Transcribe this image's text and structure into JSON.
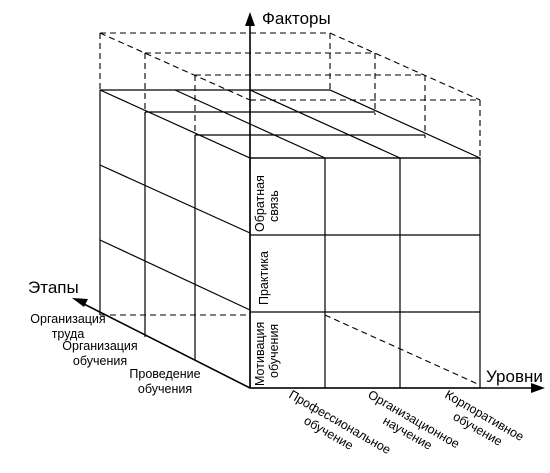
{
  "axes": {
    "factors": "Факторы",
    "stages": "Этапы",
    "levels": "Уровни"
  },
  "factor_items": [
    {
      "line1": "Мотивация",
      "line2": "обучения"
    },
    {
      "line1": "Практика",
      "line2": ""
    },
    {
      "line1": "Обратная",
      "line2": "связь"
    }
  ],
  "stage_items": [
    {
      "line1": "Организация",
      "line2": "труда"
    },
    {
      "line1": "Организация",
      "line2": "обучения"
    },
    {
      "line1": "Проведение",
      "line2": "обучения"
    }
  ],
  "level_items": [
    {
      "line1": "Профессиональное",
      "line2": "обучение"
    },
    {
      "line1": "Организационное",
      "line2": "научение"
    },
    {
      "line1": "Корпоративное",
      "line2": "обучение"
    }
  ]
}
